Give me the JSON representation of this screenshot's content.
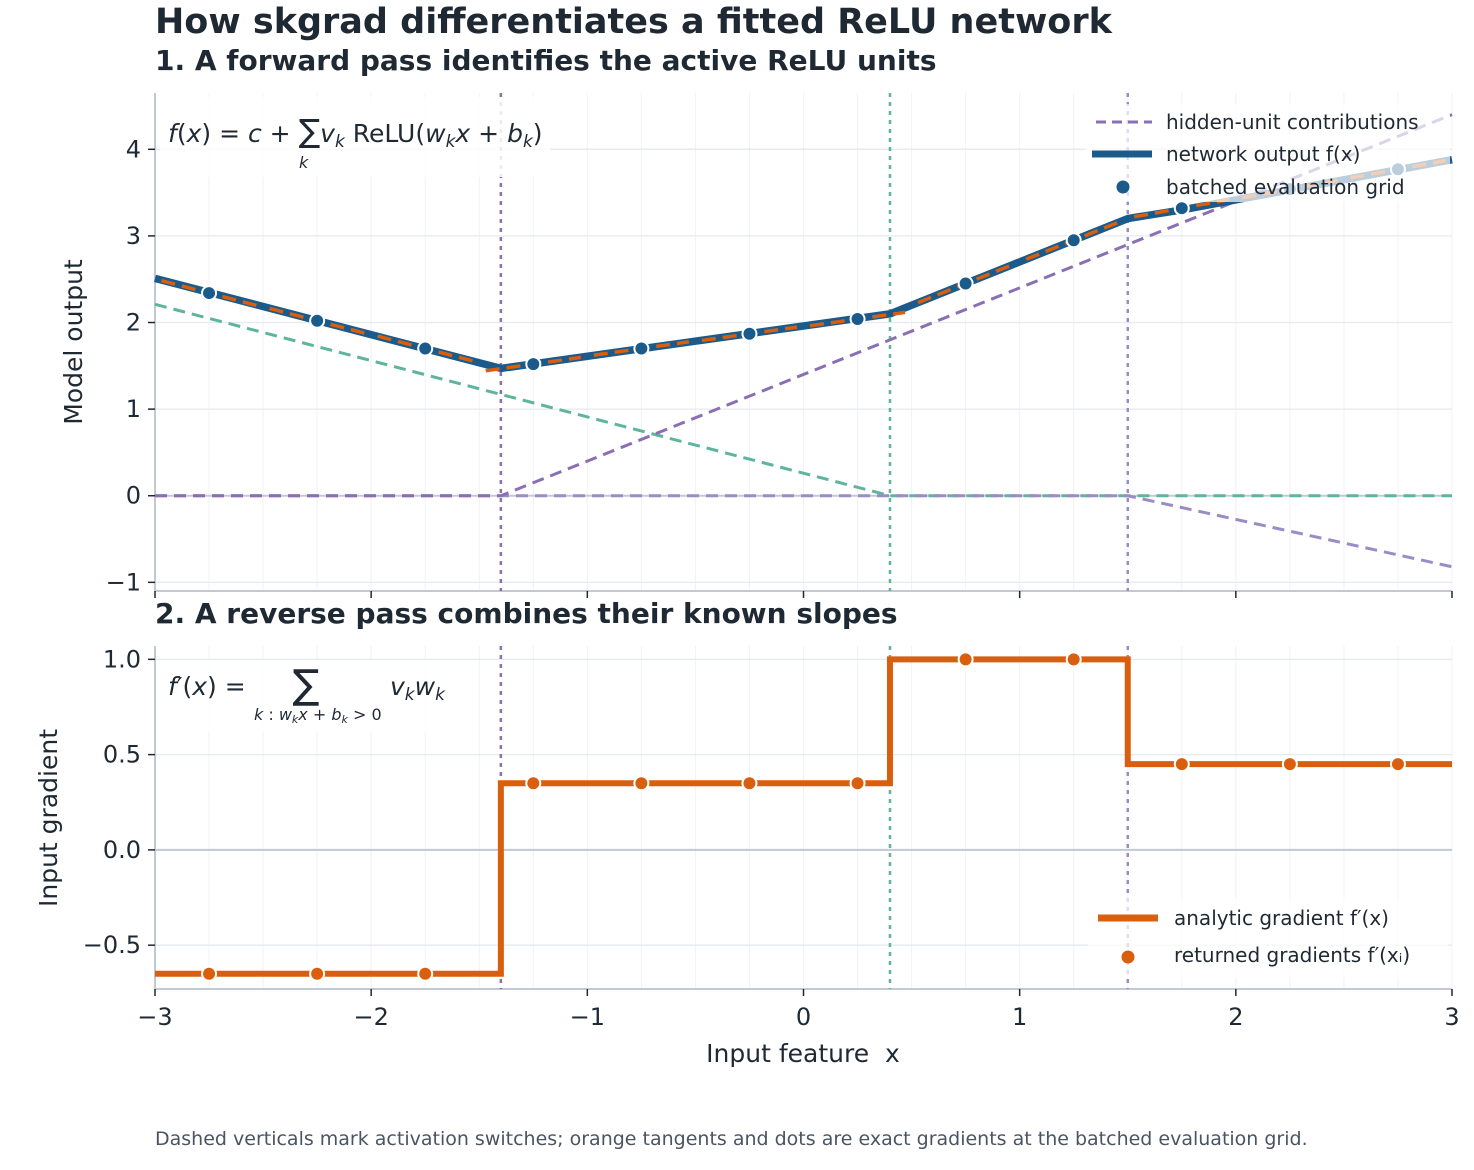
{
  "title": "How skgrad differentiates a fitted ReLU network",
  "caption": "Dashed verticals mark activation switches; orange tangents and dots are exact gradients at the batched evaluation grid.",
  "colors": {
    "output": "#1a5b8c",
    "gradient": "#d95f0e",
    "unit_a": "#5fb49c",
    "unit_b": "#8a6fb5",
    "unit_c": "#9a8cc4",
    "grid": "#e6e9ee",
    "axis": "#c3c9d2",
    "text": "#1f2933"
  },
  "chart_data": [
    {
      "type": "line",
      "title": "1. A forward pass identifies the active ReLU units",
      "xlabel": "",
      "ylabel": "Model output",
      "xlim": [
        -3,
        3
      ],
      "ylim": [
        -1.1,
        4.65
      ],
      "xticks": [
        -3,
        -2,
        -1,
        0,
        1,
        2,
        3
      ],
      "yticks": [
        -1,
        0,
        1,
        2,
        3,
        4
      ],
      "ytick_labels": [
        "−1",
        "0",
        "1",
        "2",
        "3",
        "4"
      ],
      "grid": true,
      "equation": "f(x) = c + ∑ₖ vₖ ReLU(wₖx + bₖ)",
      "activation_switches": [
        -1.4,
        0.4,
        1.5
      ],
      "series": [
        {
          "name": "network output f(x)",
          "style": "solid",
          "x": [
            -3,
            -1.4,
            0.4,
            1.5,
            1.75,
            3
          ],
          "y": [
            2.51,
            1.47,
            2.1,
            3.2,
            3.3,
            3.88
          ]
        },
        {
          "name": "hidden-unit contributions",
          "style": "dashed",
          "x": [
            -3,
            -1.4,
            1.5,
            3
          ],
          "y": [
            0,
            0,
            2.9,
            4.4
          ]
        },
        {
          "name": "",
          "style": "dashed",
          "x": [
            -3,
            0.4,
            3
          ],
          "y": [
            2.21,
            0,
            0
          ]
        },
        {
          "name": "",
          "style": "dashed",
          "x": [
            -3,
            1.5,
            3
          ],
          "y": [
            0,
            0,
            -0.82
          ]
        },
        {
          "name": "batched evaluation grid",
          "style": "markers",
          "x": [
            -2.75,
            -2.25,
            -1.75,
            -1.25,
            -0.75,
            -0.25,
            0.25,
            0.75,
            1.25,
            1.75,
            2.25,
            2.75
          ],
          "y": [
            2.34,
            2.02,
            1.7,
            1.52,
            1.7,
            1.87,
            2.04,
            2.45,
            2.95,
            3.32,
            3.54,
            3.77
          ]
        }
      ],
      "legend": [
        "hidden-unit contributions",
        "network output f(x)",
        "batched evaluation grid"
      ],
      "legend_position": "top-right"
    },
    {
      "type": "line",
      "title": "2. A reverse pass combines their known slopes",
      "xlabel": "Input feature  x",
      "ylabel": "Input gradient",
      "xlim": [
        -3,
        3
      ],
      "ylim": [
        -0.73,
        1.07
      ],
      "xticks": [
        -3,
        -2,
        -1,
        0,
        1,
        2,
        3
      ],
      "xtick_labels": [
        "−3",
        "−2",
        "−1",
        "0",
        "1",
        "2",
        "3"
      ],
      "yticks": [
        -0.5,
        0.0,
        0.5,
        1.0
      ],
      "ytick_labels": [
        "−0.5",
        "0.0",
        "0.5",
        "1.0"
      ],
      "grid": true,
      "equation": "f′(x) = ∑ vₖwₖ over k : wₖx + bₖ > 0",
      "activation_switches": [
        -1.4,
        0.4,
        1.5
      ],
      "series": [
        {
          "name": "analytic gradient f′(x)",
          "style": "step",
          "x": [
            -3,
            -1.4,
            -1.4,
            0.4,
            0.4,
            1.5,
            1.5,
            3
          ],
          "y": [
            -0.65,
            -0.65,
            0.35,
            0.35,
            1.0,
            1.0,
            0.45,
            0.45
          ]
        },
        {
          "name": "returned gradients f′(xᵢ)",
          "style": "markers",
          "x": [
            -2.75,
            -2.25,
            -1.75,
            -1.25,
            -0.75,
            -0.25,
            0.25,
            0.75,
            1.25,
            1.75,
            2.25,
            2.75
          ],
          "y": [
            -0.65,
            -0.65,
            -0.65,
            0.35,
            0.35,
            0.35,
            0.35,
            1.0,
            1.0,
            0.45,
            0.45,
            0.45
          ]
        }
      ],
      "legend": [
        "analytic gradient f′(x)",
        "returned gradients f′(xᵢ)"
      ],
      "legend_position": "bottom-right"
    }
  ]
}
